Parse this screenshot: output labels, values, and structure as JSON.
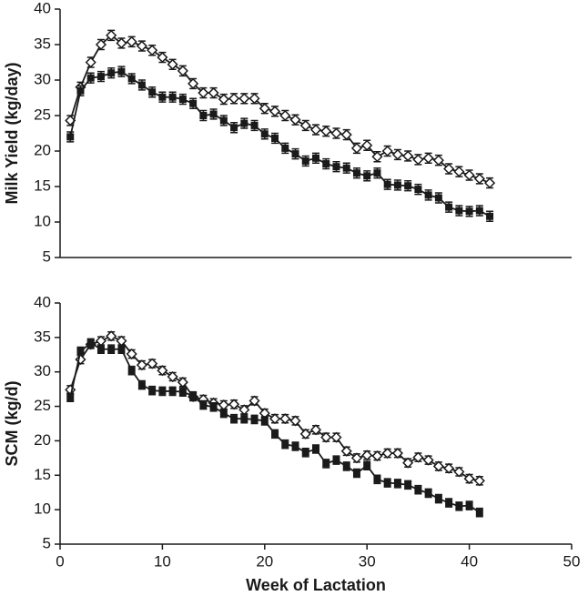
{
  "chart_data": [
    {
      "type": "line",
      "ylabel": "Milk Yield (kg/day)",
      "x": [
        1,
        2,
        3,
        4,
        5,
        6,
        7,
        8,
        9,
        10,
        11,
        12,
        13,
        14,
        15,
        16,
        17,
        18,
        19,
        20,
        21,
        22,
        23,
        24,
        25,
        26,
        27,
        28,
        29,
        30,
        31,
        32,
        33,
        34,
        35,
        36,
        37,
        38,
        39,
        40,
        41,
        42
      ],
      "xlim": [
        0,
        50
      ],
      "ylim": [
        5,
        40
      ],
      "yticks": [
        5,
        10,
        15,
        20,
        25,
        30,
        35,
        40
      ],
      "series": [
        {
          "marker": "diamond",
          "color": "#1a1a1a",
          "fill": "#ffffff",
          "error": 0.7,
          "values": [
            24.3,
            29,
            32.5,
            35,
            36.3,
            35.2,
            35.4,
            34.8,
            34.2,
            33.2,
            32.2,
            31.3,
            29.5,
            28.2,
            28.2,
            27.3,
            27.4,
            27.4,
            27.4,
            26,
            25.6,
            25,
            24.4,
            23.6,
            23,
            22.8,
            22.5,
            22.3,
            20.4,
            20.8,
            19.2,
            20,
            19.5,
            19.3,
            18.8,
            19,
            18.7,
            17.5,
            17.1,
            16.6,
            16.1,
            15.5
          ]
        },
        {
          "marker": "square",
          "color": "#1a1a1a",
          "fill": "#1a1a1a",
          "error": 0.7,
          "values": [
            22,
            28.5,
            30.3,
            30.5,
            31,
            31.2,
            30.2,
            29.3,
            28.3,
            27.6,
            27.6,
            27.3,
            26.7,
            25,
            25.2,
            24.3,
            23.3,
            23.9,
            23.6,
            22.4,
            21.8,
            20.4,
            19.6,
            18.6,
            19,
            18.2,
            17.8,
            17.6,
            16.9,
            16.5,
            16.9,
            15.3,
            15.2,
            15.1,
            14.6,
            13.8,
            13.4,
            12.1,
            11.6,
            11.5,
            11.6,
            10.8
          ]
        }
      ]
    },
    {
      "type": "line",
      "ylabel": "SCM (kg/d)",
      "xlabel": "Week of Lactation",
      "x": [
        1,
        2,
        3,
        4,
        5,
        6,
        7,
        8,
        9,
        10,
        11,
        12,
        13,
        14,
        15,
        16,
        17,
        18,
        19,
        20,
        21,
        22,
        23,
        24,
        25,
        26,
        27,
        28,
        29,
        30,
        31,
        32,
        33,
        34,
        35,
        36,
        37,
        38,
        39,
        40,
        41
      ],
      "xlim": [
        0,
        50
      ],
      "xticks": [
        0,
        10,
        20,
        30,
        40,
        50
      ],
      "ylim": [
        5,
        40
      ],
      "yticks": [
        5,
        10,
        15,
        20,
        25,
        30,
        35,
        40
      ],
      "series": [
        {
          "marker": "diamond",
          "color": "#1a1a1a",
          "fill": "#ffffff",
          "error": 0.6,
          "values": [
            27.4,
            31.8,
            34,
            34.5,
            35.2,
            34.5,
            32.6,
            31,
            31.2,
            30.2,
            29.3,
            28.5,
            26.4,
            26,
            25.5,
            25.2,
            25.3,
            24.5,
            25.8,
            24,
            23.2,
            23.2,
            22.9,
            21,
            21.6,
            20.5,
            20.5,
            18.5,
            17.5,
            17.9,
            17.8,
            18.2,
            18.2,
            16.8,
            17.6,
            17.2,
            16.3,
            16,
            15.5,
            14.5,
            14.2
          ]
        },
        {
          "marker": "square",
          "color": "#1a1a1a",
          "fill": "#1a1a1a",
          "error": 0.6,
          "values": [
            26.3,
            33,
            34.2,
            33.3,
            33.3,
            33.3,
            30.2,
            28.1,
            27.3,
            27.2,
            27.2,
            27.1,
            26.5,
            25.2,
            24.9,
            24,
            23.2,
            23.2,
            23.1,
            22.9,
            21,
            19.5,
            19.2,
            18.3,
            18.8,
            16.7,
            17.2,
            16.3,
            15.3,
            16.4,
            14.4,
            13.9,
            13.8,
            13.6,
            12.9,
            12.4,
            11.6,
            11,
            10.5,
            10.6,
            9.6
          ]
        }
      ]
    }
  ]
}
